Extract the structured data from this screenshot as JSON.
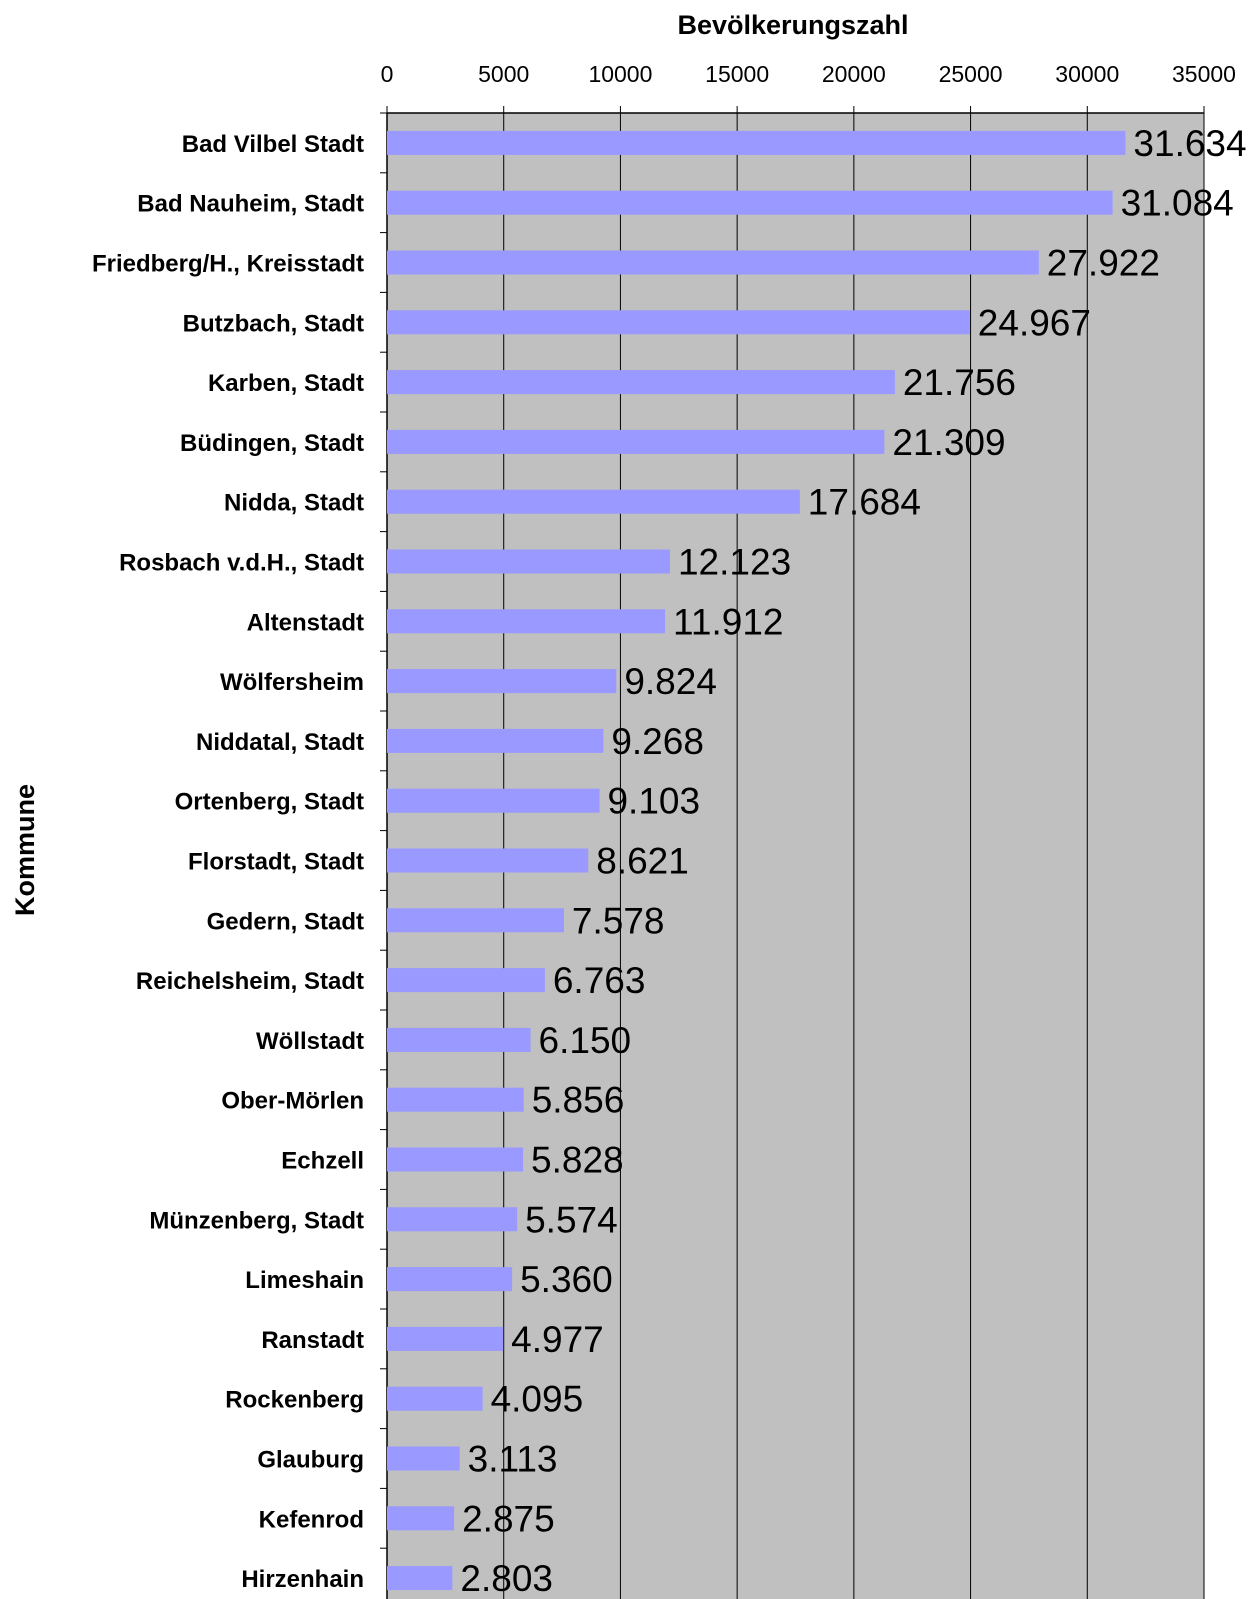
{
  "chart_data": {
    "type": "bar",
    "orientation": "horizontal",
    "title": "",
    "xlabel": "Bevölkerungszahl",
    "ylabel": "Kommune",
    "xlim": [
      0,
      35000
    ],
    "x_ticks": [
      "0",
      "5000",
      "10000",
      "15000",
      "20000",
      "25000",
      "30000",
      "35000"
    ],
    "x_axis_position": "top",
    "grid": true,
    "legend": "none",
    "colors": {
      "bar": "#9999ff",
      "plot_background": "#c0c0c0",
      "gridline": "#000000"
    },
    "categories": [
      "Bad Vilbel Stadt",
      "Bad Nauheim, Stadt",
      "Friedberg/H., Kreisstadt",
      "Butzbach, Stadt",
      "Karben, Stadt",
      "Büdingen, Stadt",
      "Nidda, Stadt",
      "Rosbach v.d.H., Stadt",
      "Altenstadt",
      "Wölfersheim",
      "Niddatal, Stadt",
      "Ortenberg, Stadt",
      "Florstadt, Stadt",
      "Gedern, Stadt",
      "Reichelsheim, Stadt",
      "Wöllstadt",
      "Ober-Mörlen",
      "Echzell",
      "Münzenberg, Stadt",
      "Limeshain",
      "Ranstadt",
      "Rockenberg",
      "Glauburg",
      "Kefenrod",
      "Hirzenhain"
    ],
    "values": [
      31634,
      31084,
      27922,
      24967,
      21756,
      21309,
      17684,
      12123,
      11912,
      9824,
      9268,
      9103,
      8621,
      7578,
      6763,
      6150,
      5856,
      5828,
      5574,
      5360,
      4977,
      4095,
      3113,
      2875,
      2803
    ],
    "data_labels": [
      "31.634",
      "31.084",
      "27.922",
      "24.967",
      "21.756",
      "21.309",
      "17.684",
      "12.123",
      "11.912",
      "9.824",
      "9.268",
      "9.103",
      "8.621",
      "7.578",
      "6.763",
      "6.150",
      "5.856",
      "5.828",
      "5.574",
      "5.360",
      "4.977",
      "4.095",
      "3.113",
      "2.875",
      "2.803"
    ]
  }
}
